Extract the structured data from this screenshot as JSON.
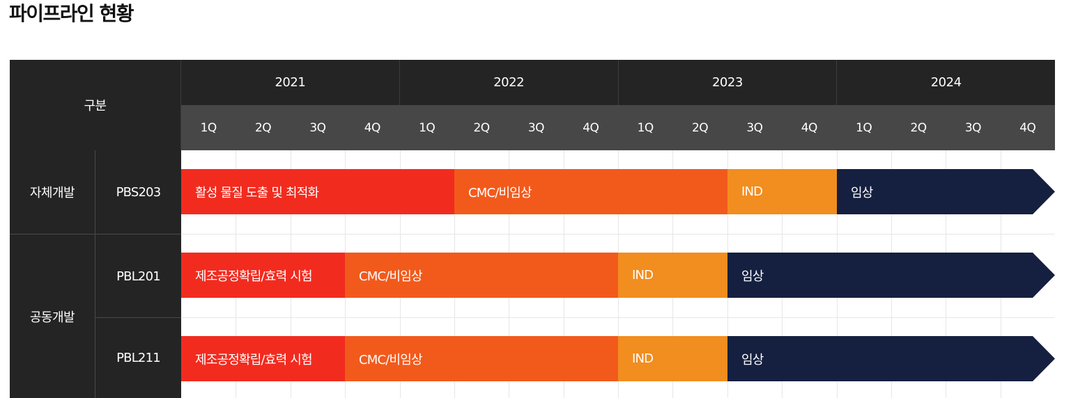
{
  "page": {
    "title": "파이프라인 현황"
  },
  "table": {
    "header_label": "구분",
    "years": [
      "2021",
      "2022",
      "2023",
      "2024"
    ],
    "quarters": [
      "1Q",
      "2Q",
      "3Q",
      "4Q",
      "1Q",
      "2Q",
      "3Q",
      "4Q",
      "1Q",
      "2Q",
      "3Q",
      "4Q",
      "1Q",
      "2Q",
      "3Q",
      "4Q"
    ],
    "groups": [
      "자체개발",
      "공동개발"
    ],
    "rows": [
      {
        "group": "자체개발",
        "name": "PBS203",
        "phases": [
          {
            "label": "활성 물질 도출 및 최적화",
            "start_quarter": 1,
            "end_quarter": 5,
            "color": "#f22b1f"
          },
          {
            "label": "CMC/비임상",
            "start_quarter": 6,
            "end_quarter": 10,
            "color": "#f25a1c"
          },
          {
            "label": "IND",
            "start_quarter": 11,
            "end_quarter": 12,
            "color": "#f28d1f"
          },
          {
            "label": "임상",
            "start_quarter": 13,
            "end_quarter": 16,
            "color": "#152040"
          }
        ]
      },
      {
        "group": "공동개발",
        "name": "PBL201",
        "phases": [
          {
            "label": "제조공정확립/효력 시험",
            "start_quarter": 1,
            "end_quarter": 3,
            "color": "#f22b1f"
          },
          {
            "label": "CMC/비임상",
            "start_quarter": 4,
            "end_quarter": 8,
            "color": "#f25a1c"
          },
          {
            "label": "IND",
            "start_quarter": 9,
            "end_quarter": 10,
            "color": "#f28d1f"
          },
          {
            "label": "임상",
            "start_quarter": 11,
            "end_quarter": 16,
            "color": "#152040"
          }
        ]
      },
      {
        "group": "공동개발",
        "name": "PBL211",
        "phases": [
          {
            "label": "제조공정확립/효력 시험",
            "start_quarter": 1,
            "end_quarter": 3,
            "color": "#f22b1f"
          },
          {
            "label": "CMC/비임상",
            "start_quarter": 4,
            "end_quarter": 8,
            "color": "#f25a1c"
          },
          {
            "label": "IND",
            "start_quarter": 9,
            "end_quarter": 10,
            "color": "#f28d1f"
          },
          {
            "label": "임상",
            "start_quarter": 11,
            "end_quarter": 16,
            "color": "#152040"
          }
        ]
      }
    ]
  }
}
